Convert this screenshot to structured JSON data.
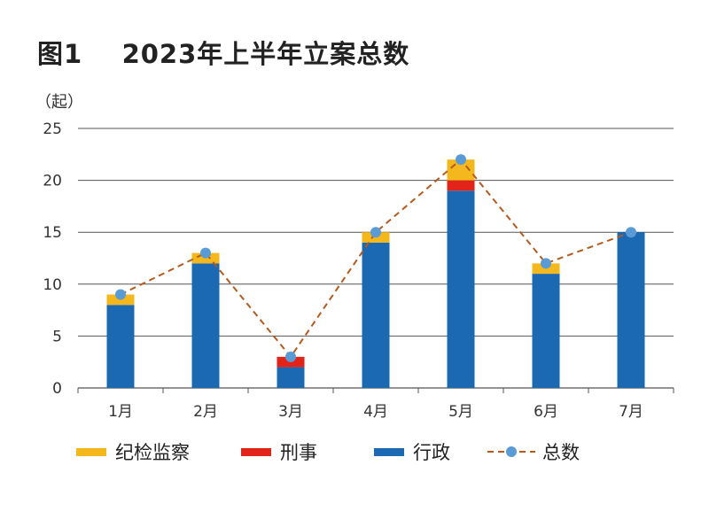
{
  "figure_number": "图1",
  "title": "2023年上半年立案总数",
  "chart_data": {
    "type": "bar",
    "stacked": true,
    "categories": [
      "1月",
      "2月",
      "3月",
      "4月",
      "5月",
      "6月",
      "7月"
    ],
    "ylabel": "（起）",
    "ylim": [
      0,
      25
    ],
    "yticks": [
      0,
      5,
      10,
      15,
      20,
      25
    ],
    "grid": true,
    "legend_position": "bottom",
    "series": [
      {
        "name": "行政",
        "type": "bar",
        "color": "#1b69b3",
        "values": [
          8,
          12,
          2,
          14,
          19,
          11,
          15
        ]
      },
      {
        "name": "刑事",
        "type": "bar",
        "color": "#e2231a",
        "values": [
          0,
          0,
          1,
          0,
          1,
          0,
          0
        ]
      },
      {
        "name": "纪检监察",
        "type": "bar",
        "color": "#f4b81c",
        "values": [
          1,
          1,
          0,
          1,
          2,
          1,
          0
        ]
      },
      {
        "name": "总数",
        "type": "line",
        "style": "dashed",
        "color": "#b55a1e",
        "marker_color": "#5b9bd5",
        "values": [
          9,
          13,
          3,
          15,
          22,
          12,
          15
        ]
      }
    ],
    "legend_order": [
      "纪检监察",
      "刑事",
      "行政",
      "总数"
    ]
  }
}
